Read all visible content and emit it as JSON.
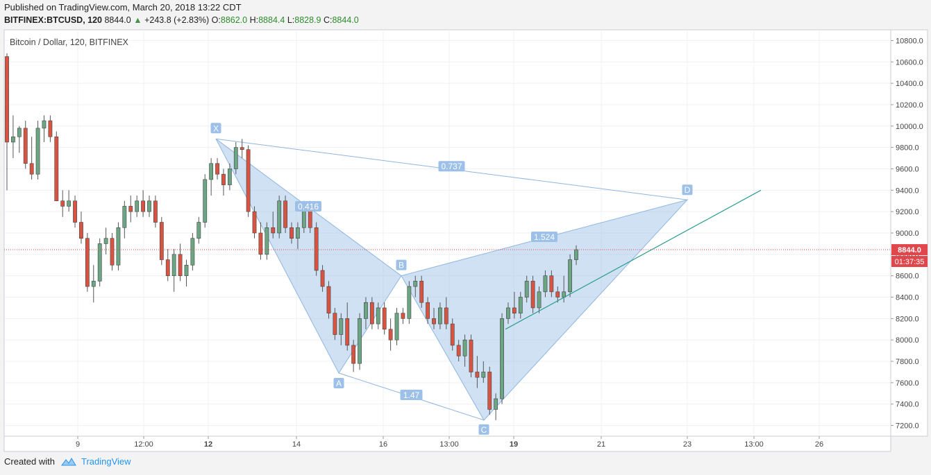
{
  "header": {
    "published": "Published on TradingView.com, March 20, 2018 13:22 CDT",
    "symbol": "BITFINEX:BTCUSD, 120",
    "last": "8844.0",
    "change": "+243.8 (+2.83%)",
    "o_label": "O:",
    "o": "8862.0",
    "h_label": "H:",
    "h": "8884.4",
    "l_label": "L:",
    "l": "8828.9",
    "c_label": "C:",
    "c": "8844.0"
  },
  "footer": {
    "created_with": "Created with",
    "brand": "TradingView",
    "logo_icon": "tradingview-cloud-icon"
  },
  "colors": {
    "bull": "#6ba583",
    "bear": "#d75442",
    "pattern_fill": "#a8c8ea",
    "pattern_line": "#8fb5e0",
    "pattern_label_bg": "#9cc0e8",
    "trendline": "#2a9d8f",
    "price_line": "#e0474c",
    "price_badge": "#e0474c"
  },
  "chart_data": {
    "type": "candlestick",
    "title": "Bitcoin / Dollar, 120, BITFINEX",
    "ylim": [
      7100,
      10900
    ],
    "y_ticks": [
      "7200.0",
      "7400.0",
      "7600.0",
      "7800.0",
      "8000.0",
      "8200.0",
      "8400.0",
      "8600.0",
      "8800.0",
      "9000.0",
      "9200.0",
      "9400.0",
      "9600.0",
      "9800.0",
      "10000.0",
      "10200.0",
      "10400.0",
      "10600.0",
      "10800.0"
    ],
    "x_tick_labels": [
      "9",
      "12:00",
      "12",
      "14",
      "16",
      "13:00",
      "19",
      "21",
      "23",
      "13:00",
      "26"
    ],
    "current_price": "8844.0",
    "countdown": "01:37:35",
    "harmonic_pattern": {
      "points": [
        {
          "name": "X",
          "price": 9880
        },
        {
          "name": "A",
          "price": 7690
        },
        {
          "name": "B",
          "price": 8600
        },
        {
          "name": "C",
          "price": 7250
        },
        {
          "name": "D",
          "price": 9310
        }
      ],
      "ratios": [
        "0.416",
        "0.737",
        "1.524",
        "1.47"
      ]
    },
    "trendline": {
      "from_price": 8100,
      "to_price": 9400
    },
    "candles": [
      [
        10650,
        10680,
        9400,
        9850
      ],
      [
        9850,
        10100,
        9700,
        9900
      ],
      [
        9900,
        10000,
        9750,
        9980
      ],
      [
        9980,
        10050,
        9600,
        9650
      ],
      [
        9650,
        9900,
        9500,
        9550
      ],
      [
        9550,
        10050,
        9500,
        9980
      ],
      [
        9980,
        10100,
        9850,
        10050
      ],
      [
        10050,
        10100,
        9850,
        9900
      ],
      [
        9900,
        9950,
        9300,
        9300
      ],
      [
        9300,
        9400,
        9150,
        9250
      ],
      [
        9250,
        9400,
        9200,
        9300
      ],
      [
        9300,
        9350,
        9050,
        9100
      ],
      [
        9100,
        9200,
        8900,
        8950
      ],
      [
        8950,
        9000,
        8450,
        8500
      ],
      [
        8500,
        8700,
        8350,
        8550
      ],
      [
        8550,
        8950,
        8500,
        8900
      ],
      [
        8900,
        9050,
        8800,
        8950
      ],
      [
        8950,
        9000,
        8650,
        8700
      ],
      [
        8700,
        9100,
        8650,
        9050
      ],
      [
        9050,
        9300,
        8950,
        9250
      ],
      [
        9250,
        9350,
        9100,
        9200
      ],
      [
        9200,
        9350,
        9150,
        9300
      ],
      [
        9300,
        9400,
        9150,
        9200
      ],
      [
        9200,
        9350,
        9150,
        9300
      ],
      [
        9300,
        9350,
        9050,
        9100
      ],
      [
        9100,
        9150,
        8700,
        8750
      ],
      [
        8750,
        8850,
        8550,
        8600
      ],
      [
        8600,
        8850,
        8450,
        8800
      ],
      [
        8800,
        8900,
        8550,
        8600
      ],
      [
        8600,
        8750,
        8500,
        8700
      ],
      [
        8700,
        9000,
        8650,
        8950
      ],
      [
        8950,
        9150,
        8900,
        9100
      ],
      [
        9100,
        9550,
        9050,
        9500
      ],
      [
        9500,
        9700,
        9350,
        9650
      ],
      [
        9650,
        9700,
        9500,
        9550
      ],
      [
        9550,
        9600,
        9350,
        9450
      ],
      [
        9450,
        9650,
        9400,
        9600
      ],
      [
        9600,
        9850,
        9550,
        9800
      ],
      [
        9800,
        9880,
        9700,
        9780
      ],
      [
        9780,
        9820,
        9150,
        9200
      ],
      [
        9200,
        9250,
        8950,
        9000
      ],
      [
        9000,
        9100,
        8750,
        8800
      ],
      [
        8800,
        9100,
        8750,
        9050
      ],
      [
        9050,
        9200,
        8950,
        9000
      ],
      [
        9000,
        9350,
        8950,
        9300
      ],
      [
        9300,
        9350,
        9000,
        9050
      ],
      [
        9050,
        9100,
        8900,
        8950
      ],
      [
        8950,
        9100,
        8850,
        9050
      ],
      [
        9050,
        9300,
        9000,
        9250
      ],
      [
        9250,
        9300,
        9000,
        9050
      ],
      [
        9050,
        9100,
        8600,
        8650
      ],
      [
        8650,
        8700,
        8450,
        8500
      ],
      [
        8500,
        8550,
        8200,
        8250
      ],
      [
        8250,
        8300,
        8000,
        8050
      ],
      [
        8050,
        8250,
        7950,
        8200
      ],
      [
        8200,
        8350,
        7900,
        7950
      ],
      [
        7950,
        8000,
        7700,
        7780
      ],
      [
        7780,
        8250,
        7720,
        8200
      ],
      [
        8200,
        8400,
        8100,
        8350
      ],
      [
        8350,
        8400,
        8100,
        8150
      ],
      [
        8150,
        8350,
        8100,
        8300
      ],
      [
        8300,
        8350,
        8050,
        8100
      ],
      [
        8100,
        8200,
        7900,
        8000
      ],
      [
        8000,
        8300,
        7950,
        8250
      ],
      [
        8250,
        8300,
        8150,
        8200
      ],
      [
        8200,
        8550,
        8150,
        8500
      ],
      [
        8500,
        8600,
        8400,
        8550
      ],
      [
        8550,
        8600,
        8300,
        8350
      ],
      [
        8350,
        8400,
        8150,
        8200
      ],
      [
        8200,
        8300,
        8100,
        8150
      ],
      [
        8150,
        8350,
        8100,
        8300
      ],
      [
        8300,
        8400,
        8100,
        8150
      ],
      [
        8150,
        8200,
        7900,
        7950
      ],
      [
        7950,
        8000,
        7800,
        7850
      ],
      [
        7850,
        8050,
        7750,
        8000
      ],
      [
        8000,
        8050,
        7650,
        7700
      ],
      [
        7700,
        7850,
        7550,
        7650
      ],
      [
        7650,
        7800,
        7600,
        7700
      ],
      [
        7700,
        7750,
        7300,
        7350
      ],
      [
        7350,
        7500,
        7250,
        7450
      ],
      [
        7450,
        8250,
        7400,
        8200
      ],
      [
        8200,
        8350,
        8150,
        8300
      ],
      [
        8300,
        8450,
        8200,
        8250
      ],
      [
        8250,
        8450,
        8200,
        8400
      ],
      [
        8400,
        8600,
        8350,
        8550
      ],
      [
        8550,
        8600,
        8250,
        8300
      ],
      [
        8300,
        8500,
        8250,
        8450
      ],
      [
        8450,
        8650,
        8400,
        8600
      ],
      [
        8600,
        8650,
        8400,
        8450
      ],
      [
        8450,
        8500,
        8350,
        8400
      ],
      [
        8400,
        8600,
        8350,
        8450
      ],
      [
        8450,
        8800,
        8400,
        8750
      ],
      [
        8750,
        8884,
        8700,
        8844
      ]
    ]
  }
}
